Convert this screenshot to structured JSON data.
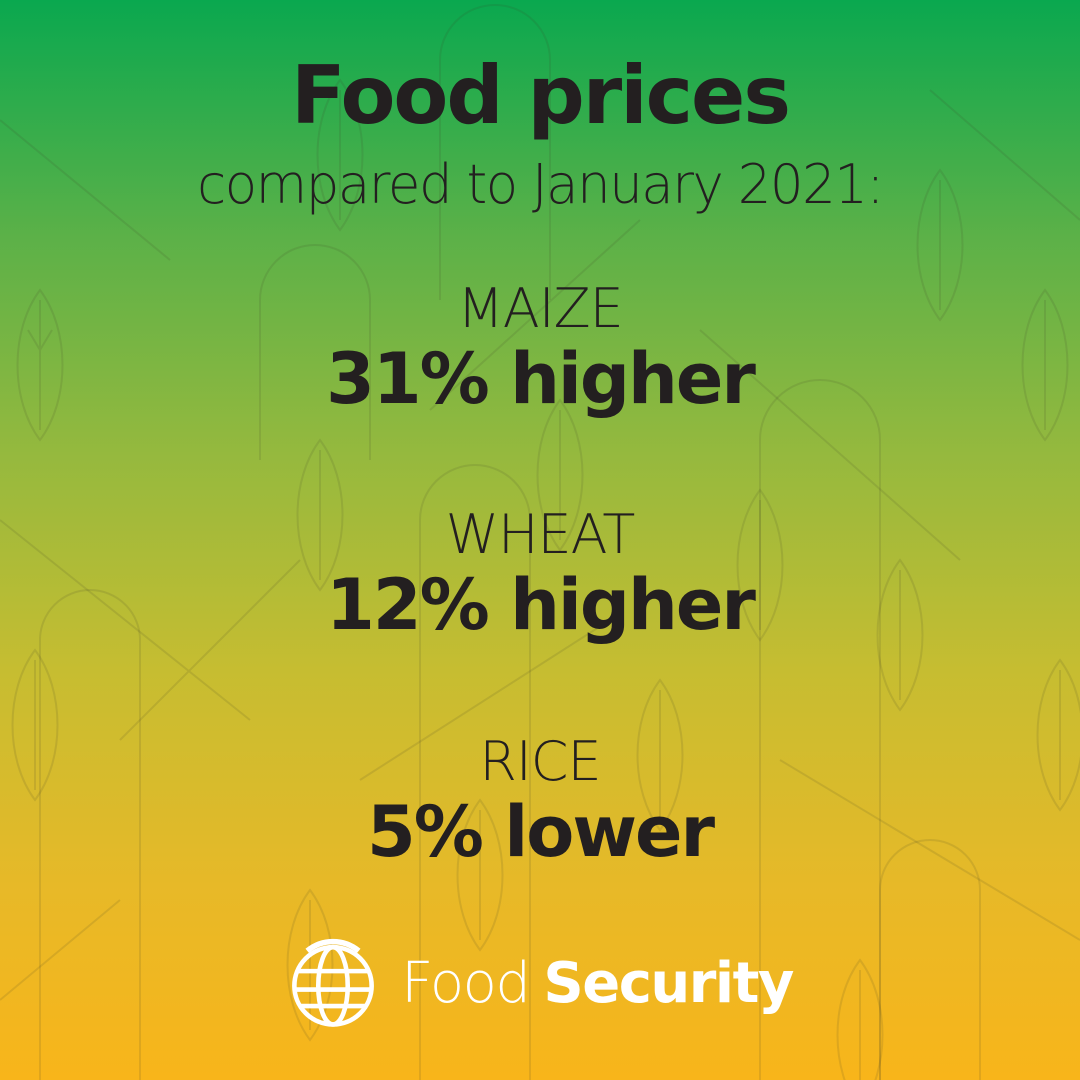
{
  "title": "Food prices",
  "subtitle": "compared to January 2021:",
  "items": [
    {
      "name": "MAIZE",
      "change": "31% higher"
    },
    {
      "name": "WHEAT",
      "change": "12% higher"
    },
    {
      "name": "RICE",
      "change": "5% lower"
    }
  ],
  "brand": {
    "light": "Food",
    "bold": "Security",
    "icon": "globe-icon"
  },
  "colors": {
    "gradient_top": "#0aa84f",
    "gradient_bottom": "#f8b51a",
    "text": "#231f20",
    "brand_text": "#ffffff"
  }
}
